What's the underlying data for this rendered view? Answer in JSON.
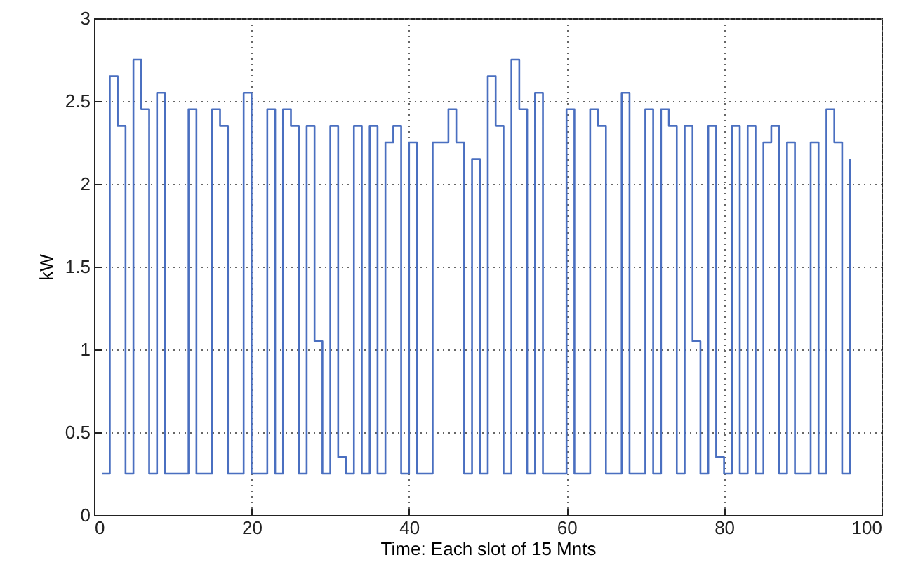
{
  "chart_data": {
    "type": "step",
    "xlabel": "Time: Each slot of 15 Mnts",
    "ylabel": "kW",
    "x": [
      1,
      2,
      3,
      4,
      5,
      6,
      7,
      8,
      9,
      10,
      11,
      12,
      13,
      14,
      15,
      16,
      17,
      18,
      19,
      20,
      21,
      22,
      23,
      24,
      25,
      26,
      27,
      28,
      29,
      30,
      31,
      32,
      33,
      34,
      35,
      36,
      37,
      38,
      39,
      40,
      41,
      42,
      43,
      44,
      45,
      46,
      47,
      48,
      49,
      50,
      51,
      52,
      53,
      54,
      55,
      56,
      57,
      58,
      59,
      60,
      61,
      62,
      63,
      64,
      65,
      66,
      67,
      68,
      69,
      70,
      71,
      72,
      73,
      74,
      75,
      76,
      77,
      78,
      79,
      80,
      81,
      82,
      83,
      84,
      85,
      86,
      87,
      88,
      89,
      90,
      91,
      92,
      93,
      94,
      95,
      96
    ],
    "series": [
      {
        "color": "#4a6fc0",
        "values": [
          0.25,
          2.65,
          2.35,
          0.25,
          2.75,
          2.45,
          0.25,
          2.55,
          0.25,
          0.25,
          0.25,
          2.45,
          0.25,
          0.25,
          2.45,
          2.35,
          0.25,
          0.25,
          2.55,
          0.25,
          0.25,
          2.45,
          0.25,
          2.45,
          2.35,
          0.25,
          2.35,
          1.05,
          0.25,
          2.35,
          0.35,
          0.25,
          2.35,
          0.25,
          2.35,
          0.25,
          2.25,
          2.35,
          0.25,
          2.25,
          0.25,
          0.25,
          2.25,
          2.25,
          2.45,
          2.25,
          0.25,
          2.15,
          0.25,
          2.65,
          2.35,
          0.25,
          2.75,
          2.45,
          0.25,
          2.55,
          0.25,
          0.25,
          0.25,
          2.45,
          0.25,
          0.25,
          2.45,
          2.35,
          0.25,
          0.25,
          2.55,
          0.25,
          0.25,
          2.45,
          0.25,
          2.45,
          2.35,
          0.25,
          2.35,
          1.05,
          0.25,
          2.35,
          0.35,
          0.25,
          2.35,
          0.25,
          2.35,
          0.25,
          2.25,
          2.35,
          0.25,
          2.25,
          0.25,
          0.25,
          2.25,
          0.25,
          2.45,
          2.25,
          0.25,
          2.15
        ]
      }
    ],
    "xlim": [
      0,
      100
    ],
    "xticks": [
      0,
      20,
      40,
      60,
      80,
      100
    ],
    "ylim": [
      0,
      3
    ],
    "yticks": [
      0,
      0.5,
      1,
      1.5,
      2,
      2.5,
      3
    ],
    "grid": true,
    "line_style": "solid"
  }
}
